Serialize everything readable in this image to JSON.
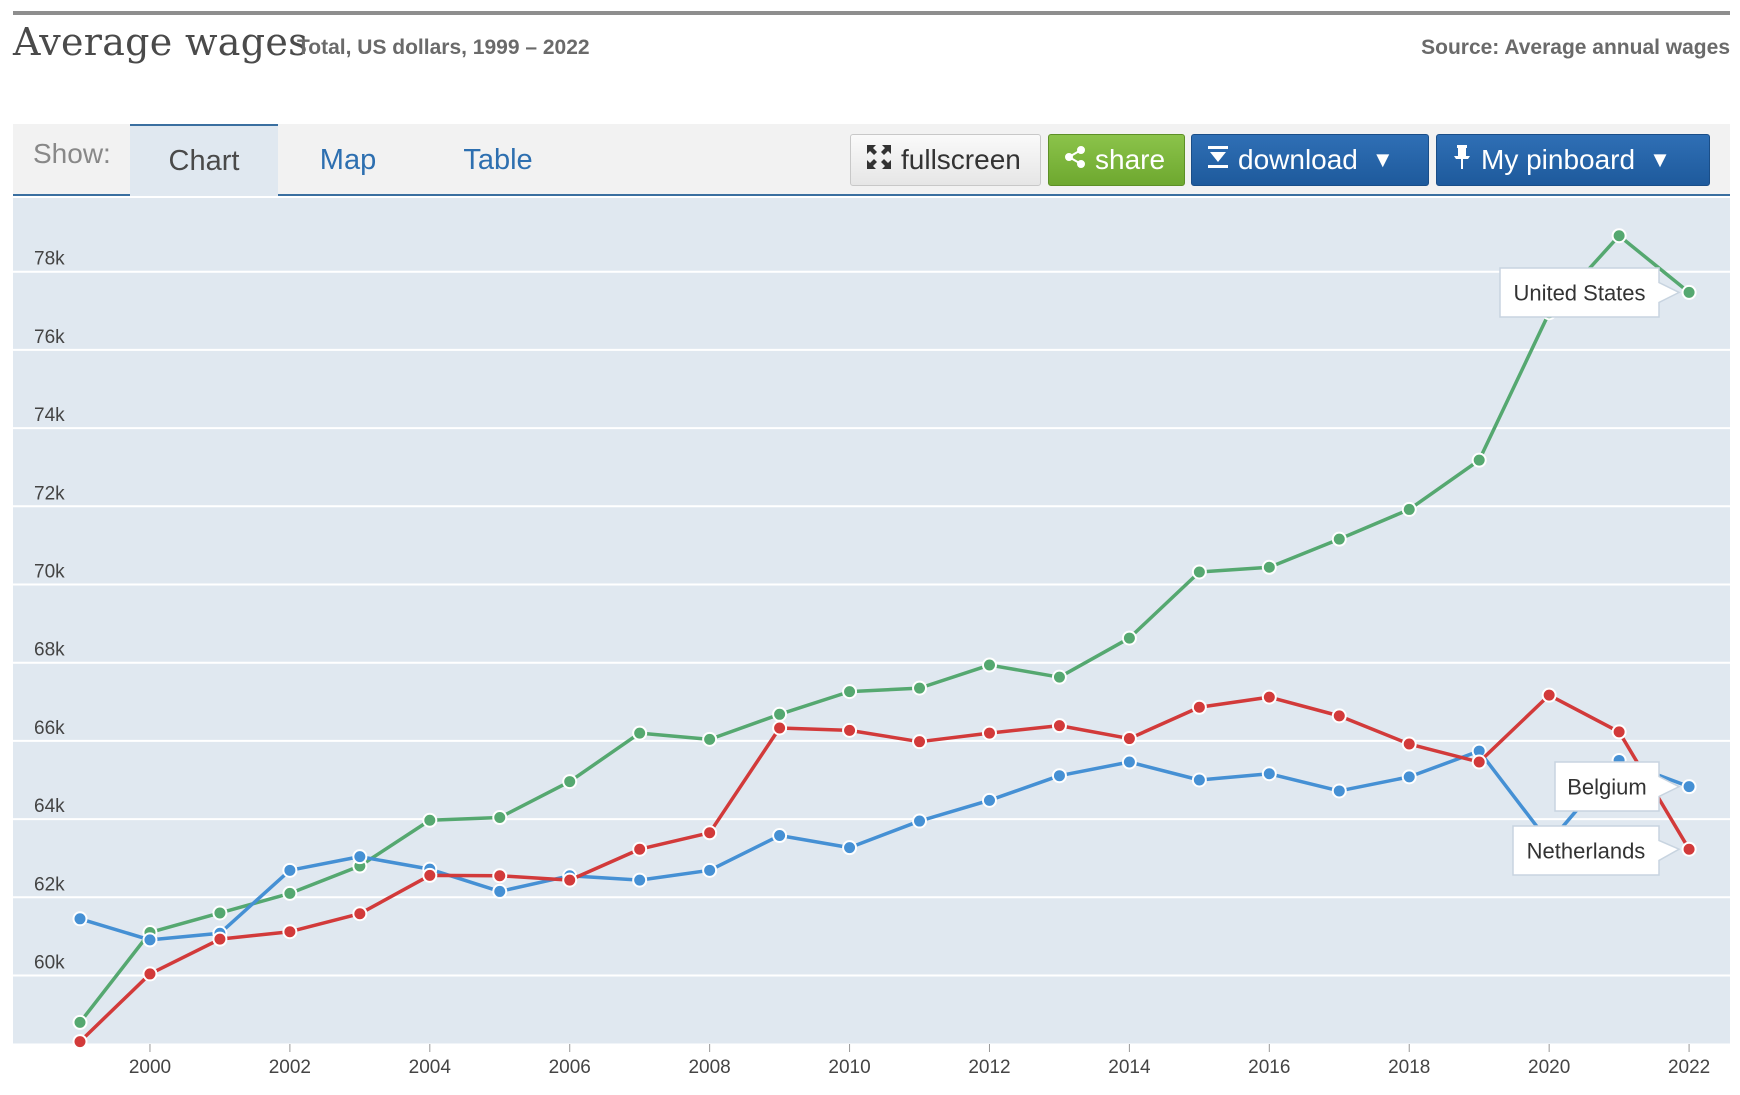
{
  "header": {
    "title": "Average wages",
    "subtitle": "Total, US dollars, 1999 – 2022",
    "source": "Source: Average annual wages"
  },
  "toolbar": {
    "show_label": "Show:",
    "tabs": [
      {
        "label": "Chart",
        "active": true
      },
      {
        "label": "Map",
        "active": false
      },
      {
        "label": "Table",
        "active": false
      }
    ],
    "fullscreen_label": "fullscreen",
    "share_label": "share",
    "download_label": "download",
    "pinboard_label": "My pinboard",
    "caret": "▼"
  },
  "colors": {
    "plot_bg": "#e0e8f0",
    "grid": "#ffffff",
    "United States": "#55a870",
    "Belgium": "#4590d4",
    "Netherlands": "#d23a3a"
  },
  "chart_data": {
    "type": "line",
    "title": "Average wages",
    "subtitle": "Total, US dollars, 1999 – 2022",
    "xlabel": "",
    "ylabel": "",
    "x": [
      1999,
      2000,
      2001,
      2002,
      2003,
      2004,
      2005,
      2006,
      2007,
      2008,
      2009,
      2010,
      2011,
      2012,
      2013,
      2014,
      2015,
      2016,
      2017,
      2018,
      2019,
      2020,
      2021,
      2022
    ],
    "x_ticks": [
      "2000",
      "2002",
      "2004",
      "2006",
      "2008",
      "2010",
      "2012",
      "2014",
      "2016",
      "2018",
      "2020",
      "2022"
    ],
    "y_ticks": [
      "60k",
      "62k",
      "64k",
      "66k",
      "68k",
      "70k",
      "72k",
      "74k",
      "76k",
      "78k"
    ],
    "ylim": [
      58300,
      80000
    ],
    "grid": true,
    "series": [
      {
        "name": "United States",
        "values": [
          58800,
          61100,
          61600,
          62100,
          62800,
          63970,
          64040,
          64960,
          66200,
          66040,
          66680,
          67260,
          67350,
          67940,
          67630,
          68630,
          70320,
          70440,
          71160,
          71920,
          73180,
          76950,
          78920,
          77470
        ]
      },
      {
        "name": "Belgium",
        "values": [
          61450,
          60910,
          61080,
          62690,
          63040,
          62720,
          62150,
          62550,
          62440,
          62690,
          63580,
          63270,
          63950,
          64480,
          65110,
          65460,
          65000,
          65160,
          64720,
          65080,
          65740,
          63400,
          65500,
          64830
        ]
      },
      {
        "name": "Netherlands",
        "values": [
          58310,
          60040,
          60930,
          61120,
          61580,
          62560,
          62550,
          62440,
          63230,
          63650,
          66330,
          66270,
          65980,
          66200,
          66390,
          66060,
          66860,
          67120,
          66640,
          65920,
          65460,
          67170,
          66230,
          63230
        ]
      }
    ],
    "labels": [
      {
        "series": "United States",
        "text": "United States"
      },
      {
        "series": "Belgium",
        "text": "Belgium"
      },
      {
        "series": "Netherlands",
        "text": "Netherlands"
      }
    ]
  }
}
